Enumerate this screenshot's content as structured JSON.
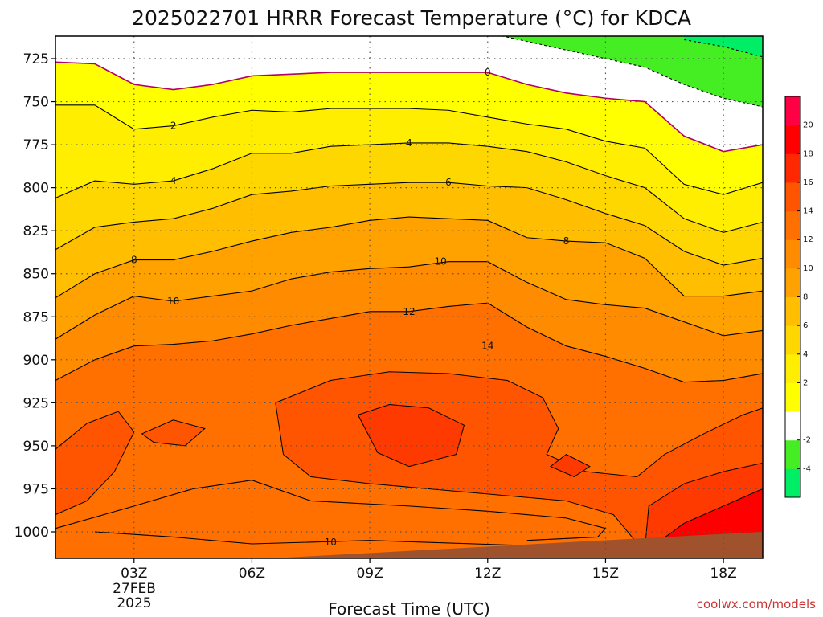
{
  "chart_data": {
    "type": "heatmap",
    "title": "2025022701 HRRR Forecast Temperature (°C) for KDCA",
    "xlabel": "Forecast Time (UTC)",
    "ylabel": "",
    "x_ticks": [
      {
        "value": 3,
        "label": "03Z"
      },
      {
        "value": 6,
        "label": "06Z"
      },
      {
        "value": 9,
        "label": "09Z"
      },
      {
        "value": 12,
        "label": "12Z"
      },
      {
        "value": 15,
        "label": "15Z"
      },
      {
        "value": 18,
        "label": "18Z"
      }
    ],
    "date_label": {
      "day": "27FEB",
      "year": "2025"
    },
    "y_ticks": [
      725,
      750,
      775,
      800,
      825,
      850,
      875,
      900,
      925,
      950,
      975,
      1000
    ],
    "xlim": [
      1,
      19
    ],
    "ylim": [
      1015,
      713
    ],
    "grid": true,
    "contour_interval": 2,
    "colorbar": {
      "levels": [
        -6,
        -4,
        -2,
        0,
        2,
        4,
        6,
        8,
        10,
        12,
        14,
        16,
        18,
        20,
        22
      ],
      "tick_labels": [
        -4,
        -2,
        2,
        4,
        6,
        8,
        10,
        12,
        14,
        16,
        18,
        20
      ],
      "colors": [
        "#00ee66",
        "#44ee22",
        "#ffffff",
        "#ffff00",
        "#ffee00",
        "#ffd700",
        "#ffbf00",
        "#ffa200",
        "#ff8c00",
        "#ff7000",
        "#ff5500",
        "#ff2800",
        "#ff0000",
        "#ff0044"
      ]
    },
    "profile_hours": [
      1,
      2,
      3,
      4,
      5,
      6,
      7,
      8,
      9,
      10,
      11,
      12,
      13,
      14,
      15,
      16,
      17,
      18,
      19
    ],
    "isotherm_pressures_hpa": {
      "-4": [
        null,
        null,
        null,
        null,
        null,
        null,
        null,
        null,
        null,
        null,
        null,
        null,
        null,
        null,
        null,
        null,
        714,
        718,
        724
      ],
      "-2": [
        null,
        null,
        710,
        710,
        710,
        null,
        null,
        null,
        null,
        null,
        null,
        710,
        715,
        720,
        725,
        730,
        740,
        748,
        753
      ],
      "0": [
        727,
        728,
        740,
        743,
        740,
        735,
        734,
        733,
        733,
        733,
        733,
        733,
        740,
        745,
        748,
        750,
        770,
        779,
        775
      ],
      "2": [
        752,
        752,
        766,
        764,
        759,
        755,
        756,
        754,
        754,
        754,
        755,
        759,
        763,
        766,
        773,
        777,
        798,
        804,
        797
      ],
      "4": [
        806,
        796,
        798,
        796,
        789,
        780,
        780,
        776,
        775,
        774,
        774,
        776,
        779,
        785,
        793,
        800,
        818,
        826,
        820
      ],
      "6": [
        836,
        823,
        820,
        818,
        812,
        804,
        802,
        799,
        798,
        797,
        797,
        799,
        800,
        807,
        815,
        822,
        837,
        845,
        841
      ],
      "8": [
        864,
        850,
        842,
        842,
        837,
        831,
        826,
        823,
        819,
        817,
        818,
        819,
        829,
        831,
        832,
        841,
        863,
        863,
        860
      ],
      "10": [
        888,
        874,
        863,
        866,
        863,
        860,
        853,
        849,
        847,
        846,
        843,
        843,
        855,
        865,
        868,
        870,
        878,
        886,
        883
      ],
      "12": [
        912,
        900,
        892,
        891,
        889,
        885,
        880,
        876,
        872,
        872,
        869,
        867,
        881,
        892,
        898,
        905,
        913,
        912,
        908
      ]
    },
    "contour_labels": [
      {
        "value": "0",
        "x": 12,
        "y": 733
      },
      {
        "value": "2",
        "x": 4,
        "y": 764
      },
      {
        "value": "4",
        "x": 4,
        "y": 796
      },
      {
        "value": "4",
        "x": 10,
        "y": 774
      },
      {
        "value": "6",
        "x": 11,
        "y": 797
      },
      {
        "value": "8",
        "x": 3,
        "y": 842
      },
      {
        "value": "8",
        "x": 14,
        "y": 831
      },
      {
        "value": "10",
        "x": 4,
        "y": 866
      },
      {
        "value": "10",
        "x": 10.8,
        "y": 843
      },
      {
        "value": "12",
        "x": 10,
        "y": 872
      },
      {
        "value": "14",
        "x": 12,
        "y": 892
      },
      {
        "value": "10",
        "x": 8,
        "y": 1006
      }
    ]
  },
  "credit": "coolwx.com/models",
  "colors": {
    "ground": "#a0522d",
    "freezing_line": "#b0006a",
    "contour": "#000000"
  }
}
